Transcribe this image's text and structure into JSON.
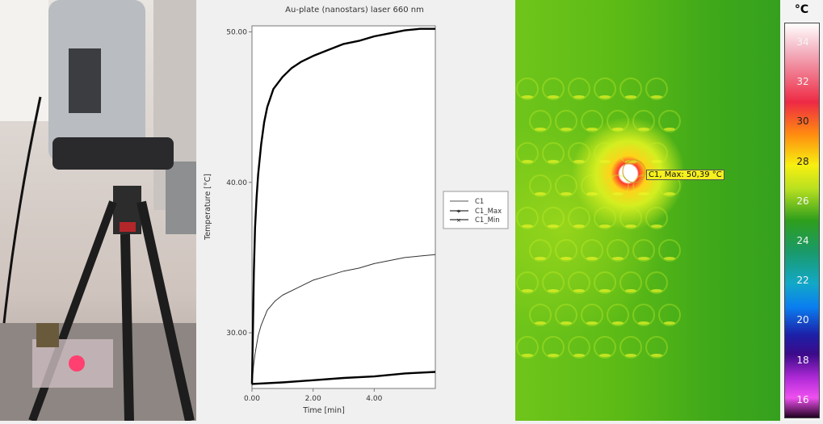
{
  "chart_data": {
    "type": "line",
    "title": "Au-plate (nanostars) laser 660 nm",
    "xlabel": "Time [min]",
    "ylabel": "Temperature [°C]",
    "xlim": [
      0,
      6.0
    ],
    "ylim": [
      26.3,
      50.4
    ],
    "xticks": [
      "0.00",
      "2.00",
      "4.00"
    ],
    "xtick_values": [
      0,
      2,
      4
    ],
    "yticks": [
      "30.00",
      "40.00",
      "50.00"
    ],
    "ytick_values": [
      30,
      40,
      50
    ],
    "legend": {
      "placement": "right",
      "entries": [
        "C1",
        "C1_Max",
        "C1_Min"
      ]
    },
    "series": [
      {
        "name": "C1",
        "x": [
          0,
          0.05,
          0.1,
          0.2,
          0.3,
          0.5,
          0.75,
          1.0,
          1.5,
          2.0,
          2.5,
          3.0,
          3.5,
          4.0,
          4.5,
          5.0,
          5.5,
          6.0
        ],
        "y": [
          26.5,
          27.8,
          28.6,
          29.8,
          30.5,
          31.5,
          32.1,
          32.5,
          33.0,
          33.5,
          33.8,
          34.1,
          34.3,
          34.6,
          34.8,
          35.0,
          35.1,
          35.2
        ]
      },
      {
        "name": "C1_Max",
        "x": [
          0,
          0.03,
          0.06,
          0.1,
          0.15,
          0.2,
          0.3,
          0.4,
          0.5,
          0.7,
          1.0,
          1.3,
          1.6,
          2.0,
          2.5,
          3.0,
          3.5,
          4.0,
          4.5,
          5.0,
          5.5,
          6.0
        ],
        "y": [
          26.6,
          30,
          34,
          37,
          39,
          40.5,
          42.5,
          44,
          45,
          46.2,
          47,
          47.6,
          48,
          48.4,
          48.8,
          49.2,
          49.4,
          49.7,
          49.9,
          50.1,
          50.2,
          50.2
        ]
      },
      {
        "name": "C1_Min",
        "x": [
          0,
          1,
          2,
          3,
          4,
          5,
          6
        ],
        "y": [
          26.6,
          26.7,
          26.85,
          27.0,
          27.1,
          27.3,
          27.4
        ]
      }
    ]
  },
  "thermal": {
    "marker_label": "C1, Max: 50,39 °C",
    "colorbar_unit": "°C",
    "colorbar_ticks": [
      "34",
      "32",
      "30",
      "28",
      "26",
      "24",
      "22",
      "20",
      "18",
      "16"
    ]
  }
}
